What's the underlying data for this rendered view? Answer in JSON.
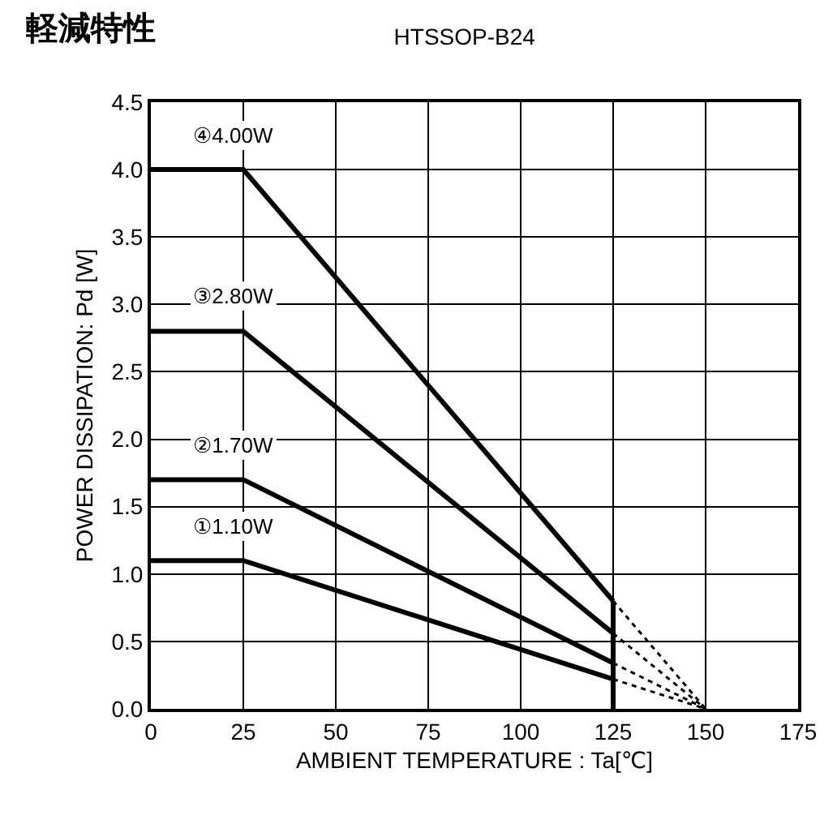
{
  "chart_data": {
    "type": "line",
    "title": "軽減特性",
    "subtitle": "HTSSOP-B24",
    "xlabel": "AMBIENT TEMPERATURE : Ta[℃]",
    "ylabel": "POWER DISSIPATION: Pd [W]",
    "xlim": [
      0,
      175
    ],
    "xticks": [
      0,
      25,
      50,
      75,
      100,
      125,
      150,
      175
    ],
    "ylim": [
      0,
      4.5
    ],
    "yticks": [
      {
        "value": 0,
        "label": "0.0"
      },
      {
        "value": 0.5,
        "label": "0.5"
      },
      {
        "value": 1,
        "label": "1.0"
      },
      {
        "value": 1.5,
        "label": "1.5"
      },
      {
        "value": 2,
        "label": "2.0"
      },
      {
        "value": 2.5,
        "label": "2.5"
      },
      {
        "value": 3,
        "label": "3.0"
      },
      {
        "value": 3.5,
        "label": "3.5"
      },
      {
        "value": 4,
        "label": "4.0"
      },
      {
        "value": 4.5,
        "label": "4.5"
      }
    ],
    "grid": true,
    "legend": false,
    "marker": "none",
    "series": [
      {
        "name": "④4.00W",
        "color": "#000000",
        "x": [
          0,
          25,
          125
        ],
        "values": [
          4.0,
          4.0,
          0.8
        ],
        "line_style": "solid"
      },
      {
        "name": "③2.80W",
        "color": "#000000",
        "x": [
          0,
          25,
          125
        ],
        "values": [
          2.8,
          2.8,
          0.56
        ],
        "line_style": "solid"
      },
      {
        "name": "②1.70W",
        "color": "#000000",
        "x": [
          0,
          25,
          125
        ],
        "values": [
          1.7,
          1.7,
          0.34
        ],
        "line_style": "solid"
      },
      {
        "name": "①1.10W",
        "color": "#000000",
        "x": [
          0,
          25,
          125
        ],
        "values": [
          1.1,
          1.1,
          0.22
        ],
        "line_style": "solid"
      },
      {
        "color": "#000000",
        "x": [
          125,
          125
        ],
        "values": [
          0,
          0.8
        ],
        "line_style": "solid"
      },
      {
        "color": "#000000",
        "x": [
          125,
          150
        ],
        "values": [
          0.8,
          0
        ],
        "line_style": "dotted"
      },
      {
        "color": "#000000",
        "x": [
          125,
          150
        ],
        "values": [
          0.56,
          0
        ],
        "line_style": "dotted"
      },
      {
        "color": "#000000",
        "x": [
          125,
          150
        ],
        "values": [
          0.34,
          0
        ],
        "line_style": "dotted"
      },
      {
        "color": "#000000",
        "x": [
          125,
          150
        ],
        "values": [
          0.22,
          0
        ],
        "line_style": "dotted"
      }
    ]
  }
}
